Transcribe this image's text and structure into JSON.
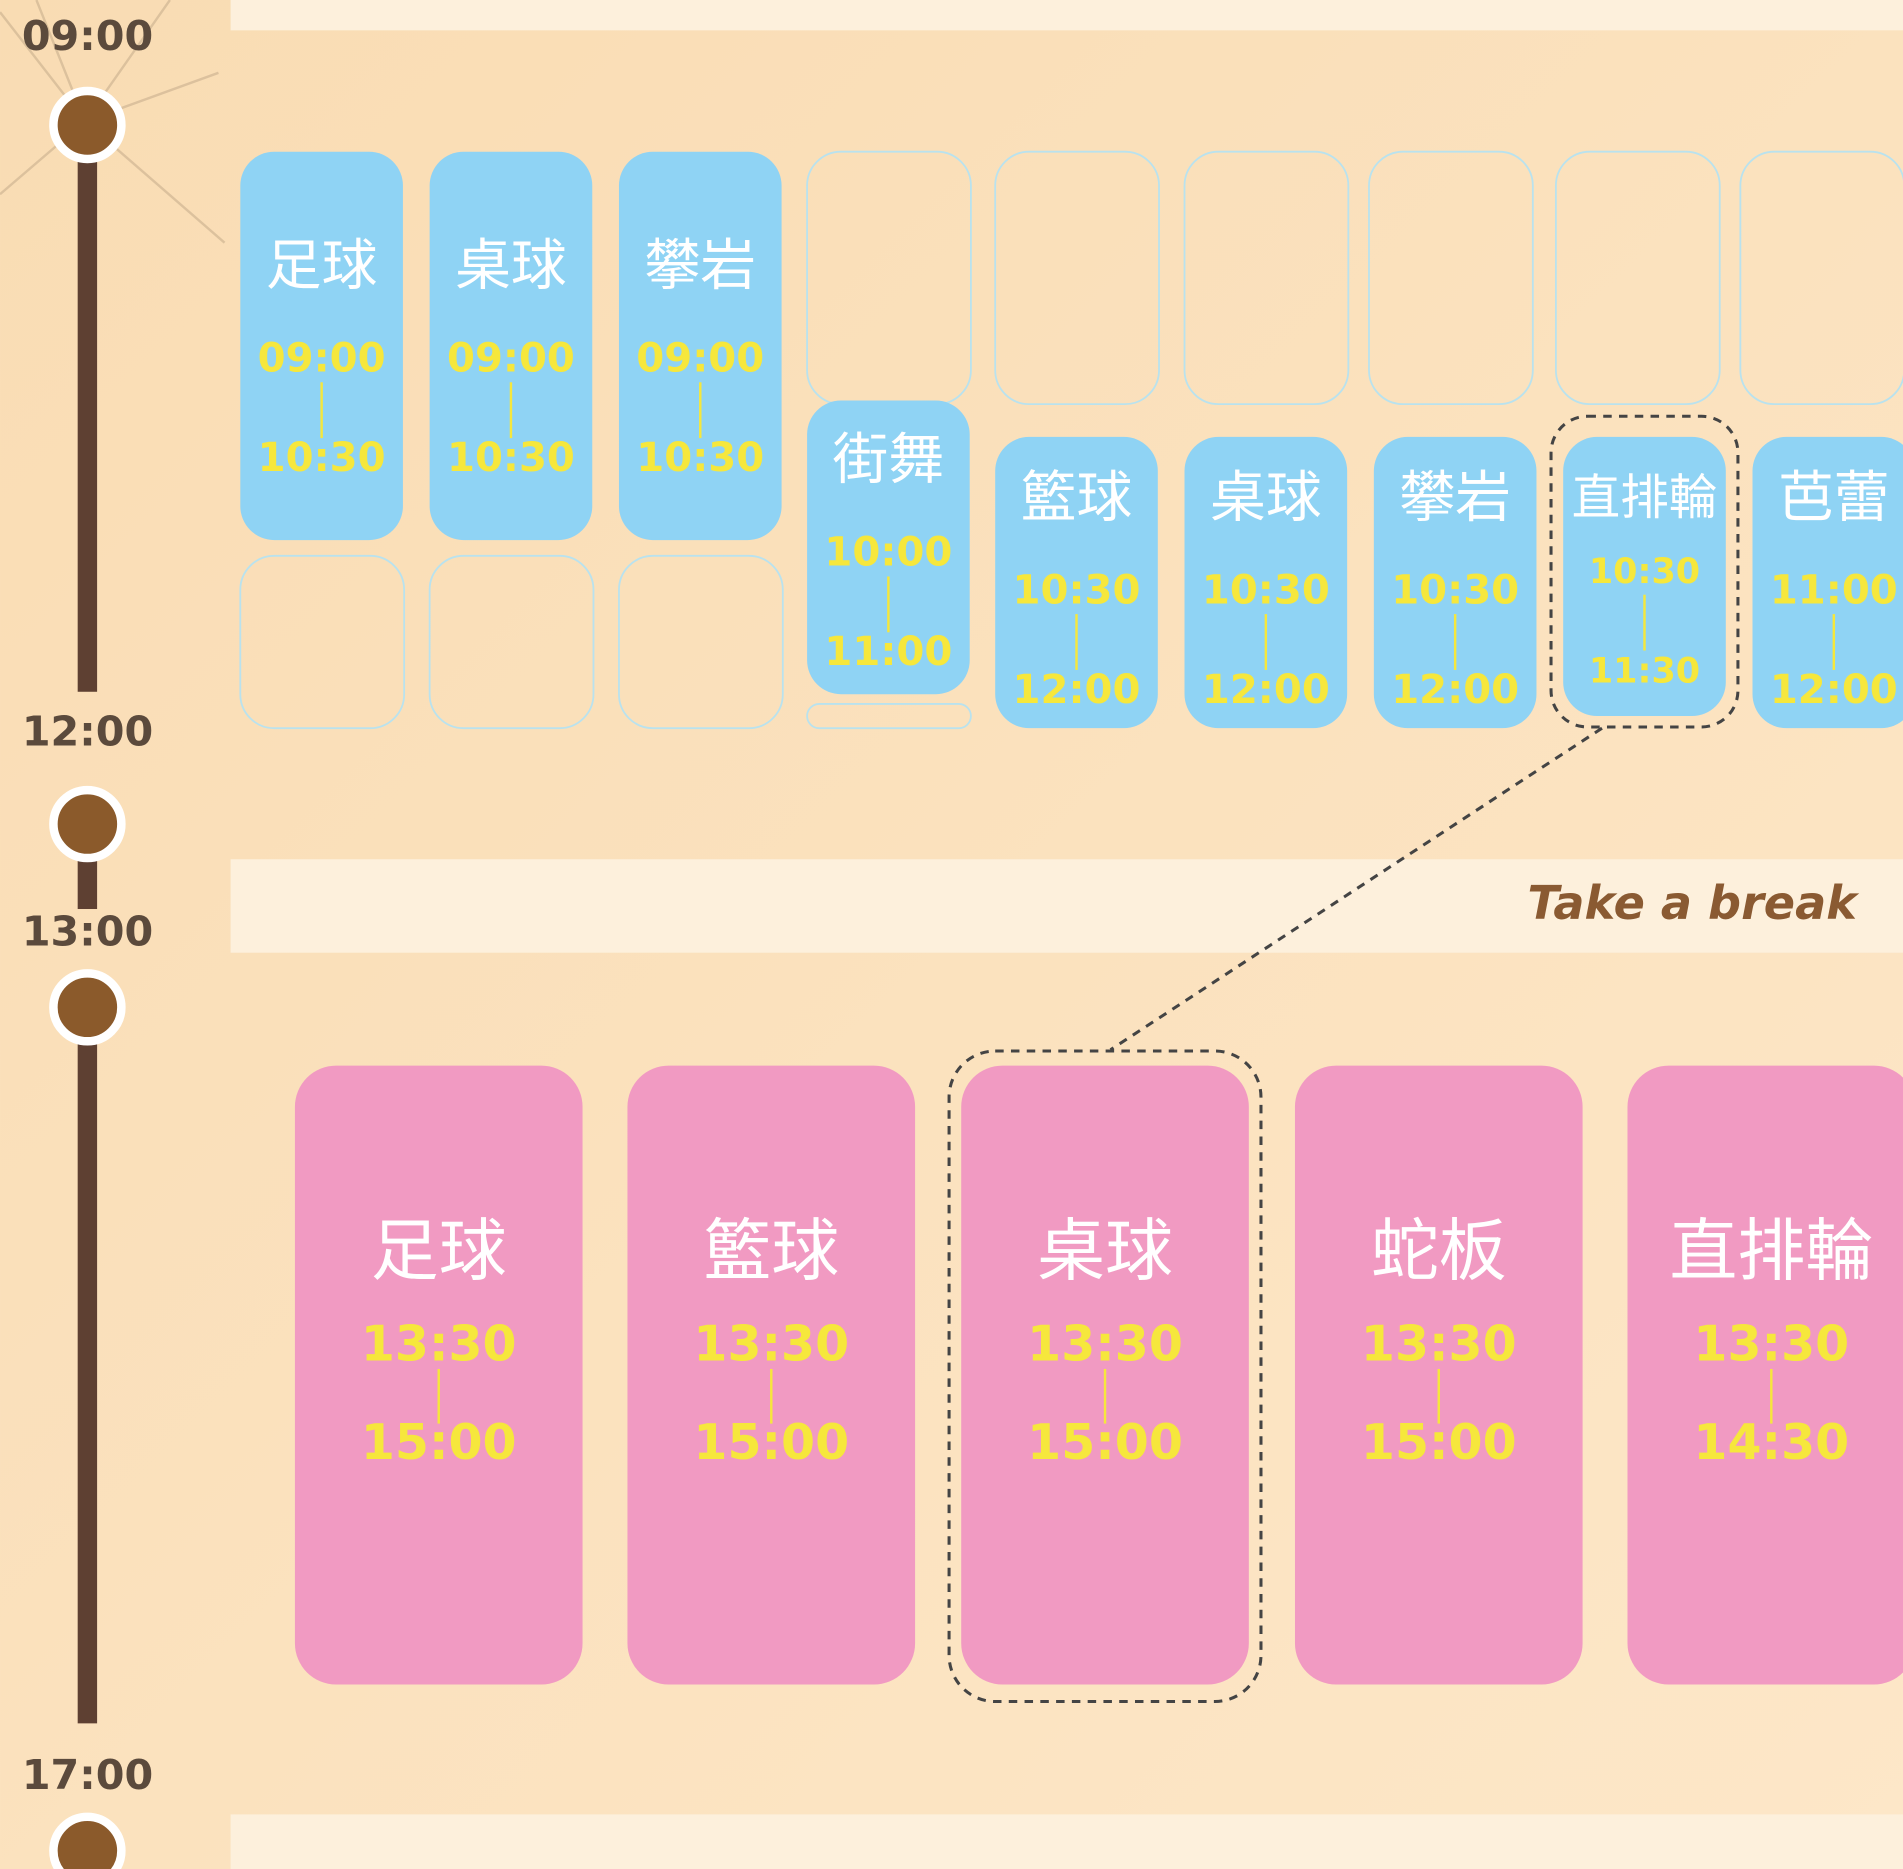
{
  "timeline": [
    "09:00",
    "12:00",
    "13:00",
    "17:00"
  ],
  "morning": [
    {
      "name": "足球",
      "start": "09:00",
      "end": "10:30"
    },
    {
      "name": "桌球",
      "start": "09:00",
      "end": "10:30"
    },
    {
      "name": "攀岩",
      "start": "09:00",
      "end": "10:30"
    },
    {
      "name": "街舞",
      "start": "10:00",
      "end": "11:00"
    },
    {
      "name": "籃球",
      "start": "10:30",
      "end": "12:00"
    },
    {
      "name": "桌球",
      "start": "10:30",
      "end": "12:00"
    },
    {
      "name": "攀岩",
      "start": "10:30",
      "end": "12:00"
    },
    {
      "name": "直排輪",
      "start": "10:30",
      "end": "11:30"
    },
    {
      "name": "芭蕾",
      "start": "11:00",
      "end": "12:00"
    }
  ],
  "break": "Take a break",
  "afternoon": [
    {
      "name": "足球",
      "start": "13:30",
      "end": "15:00"
    },
    {
      "name": "籃球",
      "start": "13:30",
      "end": "15:00"
    },
    {
      "name": "桌球",
      "start": "13:30",
      "end": "15:00"
    },
    {
      "name": "蛇板",
      "start": "13:30",
      "end": "15:00"
    },
    {
      "name": "直排輪",
      "start": "13:30",
      "end": "14:30"
    }
  ]
}
